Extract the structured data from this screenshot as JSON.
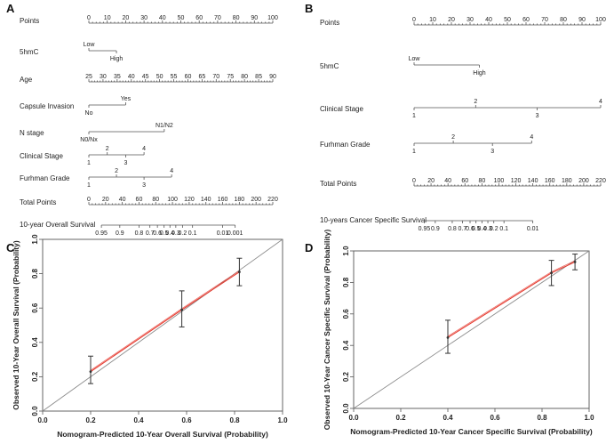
{
  "chart_data": [
    {
      "type": "nomogram",
      "panel_label": "A",
      "rows": [
        {
          "label": "Points",
          "kind": "scale",
          "domain": [
            0,
            100
          ],
          "ticks": [
            0,
            10,
            20,
            30,
            40,
            50,
            60,
            70,
            80,
            90,
            100
          ]
        },
        {
          "label": "5hmC",
          "kind": "categorical",
          "categories": [
            {
              "text": "Low",
              "points": 0,
              "side": "above"
            },
            {
              "text": "High",
              "points": 15,
              "side": "below"
            }
          ]
        },
        {
          "label": "Age",
          "kind": "scale",
          "range_points": [
            0,
            100
          ],
          "ticks": [
            25,
            30,
            35,
            40,
            45,
            50,
            55,
            60,
            65,
            70,
            75,
            80,
            85,
            90
          ]
        },
        {
          "label": "Capsule Invasion",
          "kind": "categorical",
          "categories": [
            {
              "text": "No",
              "points": 0,
              "side": "below"
            },
            {
              "text": "Yes",
              "points": 20,
              "side": "above"
            }
          ]
        },
        {
          "label": "N stage",
          "kind": "categorical",
          "categories": [
            {
              "text": "N0/Nx",
              "points": 0,
              "side": "below"
            },
            {
              "text": "N1/N2",
              "points": 41,
              "side": "above"
            }
          ]
        },
        {
          "label": "Clinical Stage",
          "kind": "categorical",
          "categories": [
            {
              "text": "1",
              "points": 0,
              "side": "below"
            },
            {
              "text": "2",
              "points": 10,
              "side": "above"
            },
            {
              "text": "3",
              "points": 20,
              "side": "below"
            },
            {
              "text": "4",
              "points": 30,
              "side": "above"
            }
          ]
        },
        {
          "label": "Furhman Grade",
          "kind": "categorical",
          "categories": [
            {
              "text": "1",
              "points": 0,
              "side": "below"
            },
            {
              "text": "2",
              "points": 15,
              "side": "above"
            },
            {
              "text": "3",
              "points": 30,
              "side": "below"
            },
            {
              "text": "4",
              "points": 45,
              "side": "above"
            }
          ]
        },
        {
          "label": "Total Points",
          "kind": "scale",
          "domain": [
            0,
            220
          ],
          "ticks": [
            0,
            20,
            40,
            60,
            80,
            100,
            120,
            140,
            160,
            180,
            200,
            220
          ]
        },
        {
          "label": "10-year Overall Survival",
          "kind": "probability",
          "ticks": [
            {
              "text": "0.95",
              "total": 15
            },
            {
              "text": "0.9",
              "total": 37
            },
            {
              "text": "0.8",
              "total": 60
            },
            {
              "text": "0.7",
              "total": 73
            },
            {
              "text": "0.6",
              "total": 82
            },
            {
              "text": "0.5",
              "total": 90
            },
            {
              "text": "0.4",
              "total": 97
            },
            {
              "text": "0.3",
              "total": 104
            },
            {
              "text": "0.2",
              "total": 112
            },
            {
              "text": "0.1",
              "total": 124
            },
            {
              "text": "0.01",
              "total": 160
            },
            {
              "text": "0.001",
              "total": 175
            }
          ]
        }
      ]
    },
    {
      "type": "nomogram",
      "panel_label": "B",
      "rows": [
        {
          "label": "Points",
          "kind": "scale",
          "domain": [
            0,
            100
          ],
          "ticks": [
            0,
            10,
            20,
            30,
            40,
            50,
            60,
            70,
            80,
            90,
            100
          ]
        },
        {
          "label": "5hmC",
          "kind": "categorical",
          "categories": [
            {
              "text": "Low",
              "points": 0,
              "side": "above"
            },
            {
              "text": "High",
              "points": 35,
              "side": "below"
            }
          ]
        },
        {
          "label": "Clinical Stage",
          "kind": "categorical",
          "categories": [
            {
              "text": "1",
              "points": 0,
              "side": "below"
            },
            {
              "text": "2",
              "points": 33,
              "side": "above"
            },
            {
              "text": "3",
              "points": 66,
              "side": "below"
            },
            {
              "text": "4",
              "points": 100,
              "side": "above"
            }
          ]
        },
        {
          "label": "Furhman Grade",
          "kind": "categorical",
          "categories": [
            {
              "text": "1",
              "points": 0,
              "side": "below"
            },
            {
              "text": "2",
              "points": 21,
              "side": "above"
            },
            {
              "text": "3",
              "points": 42,
              "side": "below"
            },
            {
              "text": "4",
              "points": 63,
              "side": "above"
            }
          ]
        },
        {
          "label": "Total Points",
          "kind": "scale",
          "domain": [
            0,
            220
          ],
          "ticks": [
            0,
            20,
            40,
            60,
            80,
            100,
            120,
            140,
            160,
            180,
            200,
            220
          ]
        },
        {
          "label": "10-years Cancer Specific Survival",
          "kind": "probability",
          "ticks": [
            {
              "text": "0.95",
              "total": 12
            },
            {
              "text": "0.9",
              "total": 25
            },
            {
              "text": "0.8",
              "total": 45
            },
            {
              "text": "0.7",
              "total": 57
            },
            {
              "text": "0.6",
              "total": 66
            },
            {
              "text": "0.5",
              "total": 73
            },
            {
              "text": "0.4",
              "total": 80
            },
            {
              "text": "0.3",
              "total": 87
            },
            {
              "text": "0.2",
              "total": 94
            },
            {
              "text": "0.1",
              "total": 106
            },
            {
              "text": "0.01",
              "total": 140
            }
          ]
        }
      ]
    },
    {
      "type": "calibration",
      "panel_label": "C",
      "xlabel": "Nomogram-Predicted 10-Year Overall Survival (Probability)",
      "ylabel": "Observed 10-Year Overall Survival (Probability)",
      "xlim": [
        0,
        1
      ],
      "ylim": [
        0,
        1
      ],
      "xticks": [
        "0.0",
        "0.2",
        "0.4",
        "0.6",
        "0.8",
        "1.0"
      ],
      "yticks": [
        "0.0",
        "0.2",
        "0.4",
        "0.6",
        "0.8",
        "1.0"
      ],
      "points": [
        {
          "x": 0.2,
          "y": 0.23,
          "lo": 0.16,
          "hi": 0.32
        },
        {
          "x": 0.58,
          "y": 0.59,
          "lo": 0.49,
          "hi": 0.7
        },
        {
          "x": 0.82,
          "y": 0.81,
          "lo": 0.73,
          "hi": 0.89
        }
      ],
      "diagonal_color": "#8c8c8c",
      "fit_color": "#e53a2f"
    },
    {
      "type": "calibration",
      "panel_label": "D",
      "xlabel": "Nomogram-Predicted 10-Year Cancer Specific Survival (Probability)",
      "ylabel": "Observed 10-Year Cancer Specific Survival (Probability)",
      "xlim": [
        0,
        1
      ],
      "ylim": [
        0,
        1
      ],
      "xticks": [
        "0.0",
        "0.2",
        "0.4",
        "0.6",
        "0.8",
        "1.0"
      ],
      "yticks": [
        "0.0",
        "0.2",
        "0.4",
        "0.6",
        "0.8",
        "1.0"
      ],
      "points": [
        {
          "x": 0.4,
          "y": 0.45,
          "lo": 0.35,
          "hi": 0.56
        },
        {
          "x": 0.84,
          "y": 0.86,
          "lo": 0.78,
          "hi": 0.94
        },
        {
          "x": 0.94,
          "y": 0.93,
          "lo": 0.88,
          "hi": 0.98
        }
      ],
      "diagonal_color": "#8c8c8c",
      "fit_color": "#e53a2f"
    }
  ]
}
